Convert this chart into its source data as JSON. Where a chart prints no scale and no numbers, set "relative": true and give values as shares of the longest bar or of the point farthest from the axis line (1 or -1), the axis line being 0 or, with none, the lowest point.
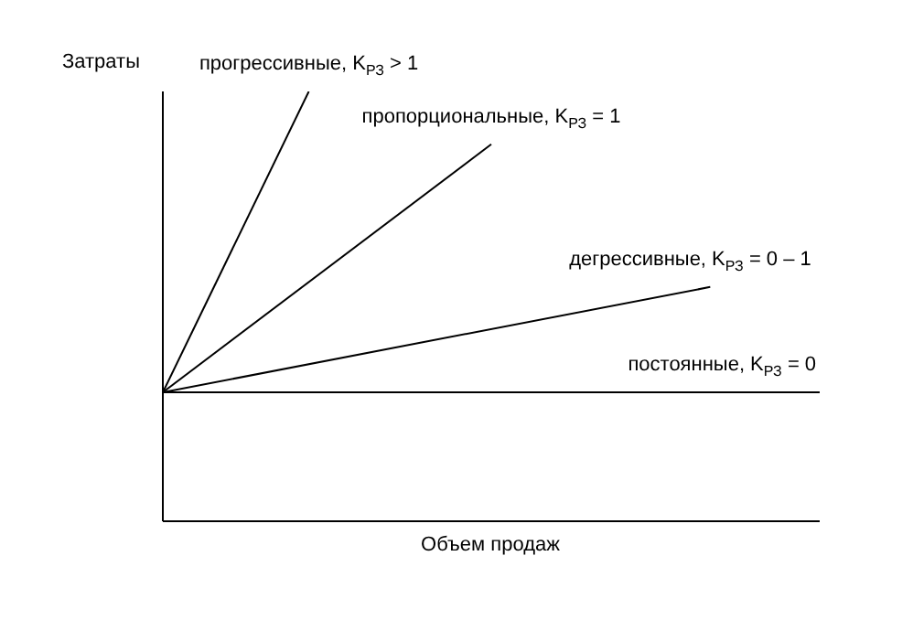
{
  "chart_data": {
    "type": "line",
    "relative": true,
    "xlabel": "Объем продаж",
    "ylabel": "Затраты",
    "legend": false,
    "marker": "none",
    "grid": false,
    "categories": [
      null,
      null,
      null,
      null,
      null,
      null,
      null,
      null,
      null,
      null,
      null,
      null,
      null,
      null,
      null,
      null,
      null,
      null,
      null
    ],
    "series": [
      {
        "name": "прогрессивные, K$_{РЗ}$ > 1",
        "color": "#000000",
        "values": [
          0.3,
          null,
          null,
          null,
          1,
          null,
          null,
          null,
          null,
          null,
          null,
          null,
          null,
          null,
          null,
          null,
          null,
          null,
          null
        ]
      },
      {
        "name": "пропорциональные, K$_{РЗ}$ = 1",
        "color": "#000000",
        "values": [
          0.3,
          null,
          null,
          null,
          null,
          null,
          null,
          null,
          null,
          0.877,
          null,
          null,
          null,
          null,
          null,
          null,
          null,
          null,
          null
        ]
      },
      {
        "name": "дегрессивные, K$_{РЗ}$ = 0 – 1",
        "color": "#000000",
        "values": [
          0.3,
          null,
          null,
          null,
          null,
          null,
          null,
          null,
          null,
          null,
          null,
          null,
          null,
          null,
          null,
          0.545,
          null,
          null,
          null
        ]
      },
      {
        "name": "постоянные, K$_{РЗ}$ = 0",
        "color": "#000000",
        "values": [
          0.3,
          null,
          null,
          null,
          null,
          null,
          null,
          null,
          null,
          null,
          null,
          null,
          null,
          null,
          null,
          null,
          null,
          null,
          0.3
        ]
      }
    ]
  }
}
